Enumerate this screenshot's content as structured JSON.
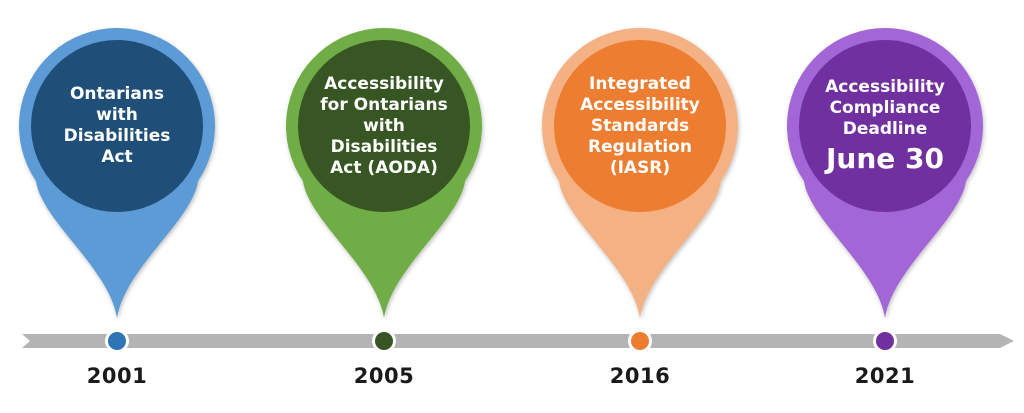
{
  "milestones": [
    {
      "year": "2001",
      "lines": [
        "Ontarians",
        "with",
        "Disabilities",
        "Act"
      ],
      "colors": {
        "outer": "#5b9bd5",
        "inner": "#1f4e79",
        "dot": "#2e75b6"
      }
    },
    {
      "year": "2005",
      "lines": [
        "Accessibility",
        "for Ontarians",
        "with",
        "Disabilities",
        "Act (AODA)"
      ],
      "colors": {
        "outer": "#70ad47",
        "inner": "#375623",
        "dot": "#375623"
      }
    },
    {
      "year": "2016",
      "lines": [
        "Integrated",
        "Accessibility",
        "Standards",
        "Regulation",
        "(IASR)"
      ],
      "colors": {
        "outer": "#f4b183",
        "inner": "#ed7d31",
        "dot": "#ed7d31"
      }
    },
    {
      "year": "2021",
      "lines": [
        "Accessibility",
        "Compliance",
        "Deadline"
      ],
      "emphasis": "June 30",
      "colors": {
        "outer": "#a366d6",
        "inner": "#7030a0",
        "dot": "#7030a0"
      }
    }
  ],
  "timeline": {
    "color": "#b4b4b4"
  }
}
